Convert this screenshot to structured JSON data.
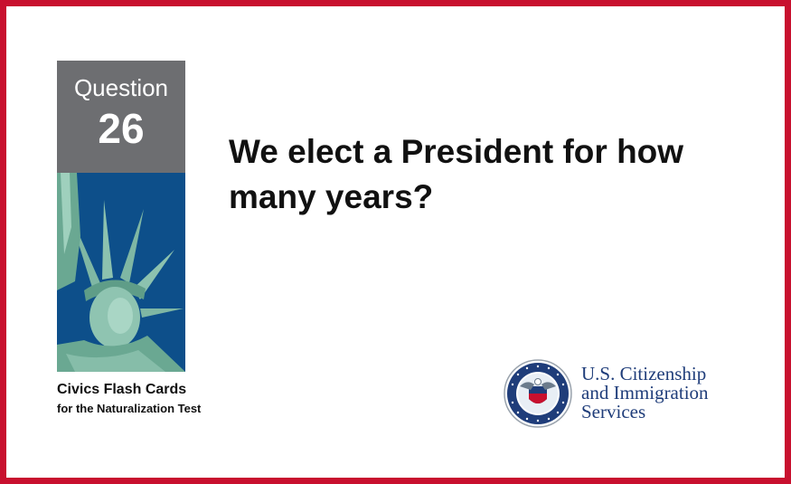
{
  "card": {
    "question_label": "Question",
    "question_number": "26",
    "question_text": "We elect a President for how many years?",
    "footer_title": "Civics Flash Cards",
    "footer_subtitle": "for the Naturalization Test"
  },
  "agency": {
    "line1": "U.S. Citizenship",
    "line2": "and Immigration",
    "line3": "Services",
    "seal_text": "U.S. DEPARTMENT OF HOMELAND SECURITY"
  },
  "colors": {
    "border": "#c8102e",
    "question_box": "#6d6e71",
    "sky": "#0d4f8a",
    "agency_text": "#1f3d7a"
  },
  "icons": {
    "statue": "statue-of-liberty-image",
    "seal": "dhs-seal-icon"
  }
}
